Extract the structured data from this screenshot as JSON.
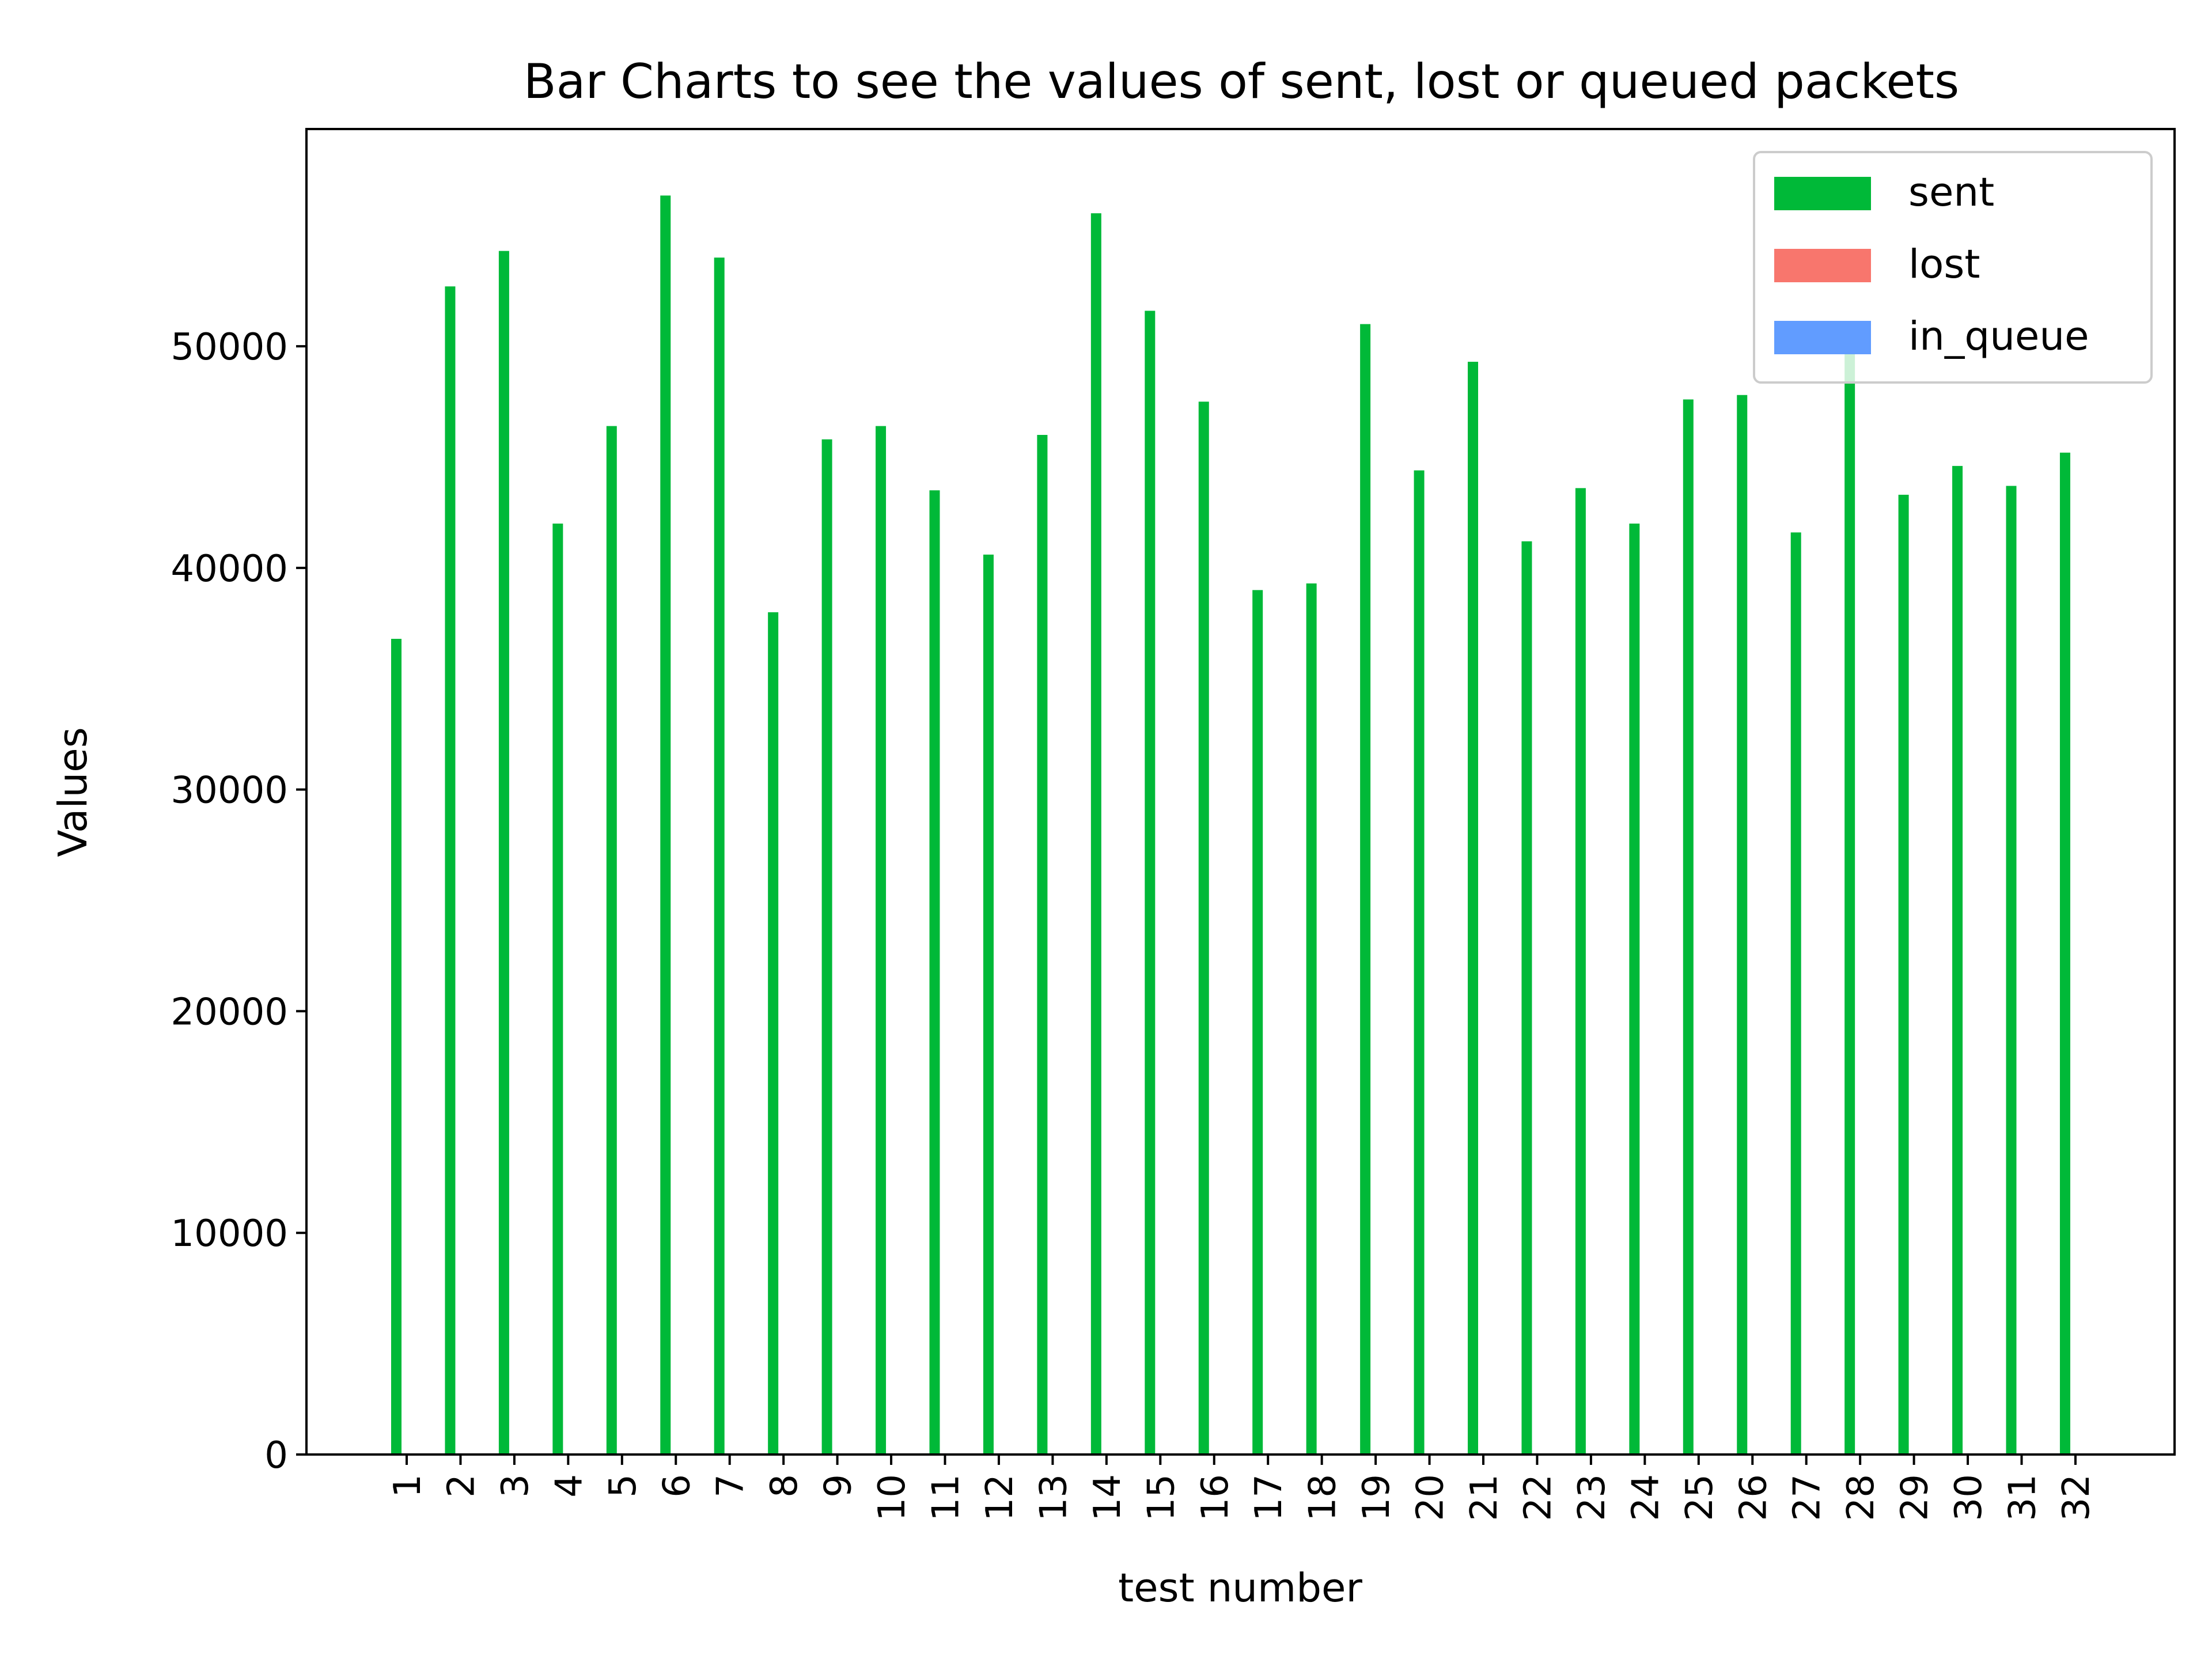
{
  "chart_data": {
    "type": "bar",
    "title": "Bar Charts to see the values of sent, lost or queued packets",
    "xlabel": "test number",
    "ylabel": "Values",
    "ylim": [
      0,
      59800
    ],
    "yticks": [
      0,
      10000,
      20000,
      30000,
      40000,
      50000
    ],
    "grid": false,
    "legend_position": "top-right",
    "categories": [
      "1",
      "2",
      "3",
      "4",
      "5",
      "6",
      "7",
      "8",
      "9",
      "10",
      "11",
      "12",
      "13",
      "14",
      "15",
      "16",
      "17",
      "18",
      "19",
      "20",
      "21",
      "22",
      "23",
      "24",
      "25",
      "26",
      "27",
      "28",
      "29",
      "30",
      "31",
      "32"
    ],
    "series": [
      {
        "name": "sent",
        "color": "#00b938",
        "values": [
          36800,
          52700,
          54300,
          42000,
          46400,
          56800,
          54000,
          38000,
          45800,
          46400,
          43500,
          40600,
          46000,
          56000,
          51600,
          47500,
          39000,
          39300,
          51000,
          44400,
          49300,
          41200,
          43600,
          42000,
          47600,
          47800,
          41600,
          50800,
          43300,
          44600,
          43700,
          45200
        ]
      },
      {
        "name": "lost",
        "color": "#f8766d",
        "values": [
          0,
          0,
          0,
          0,
          0,
          0,
          0,
          0,
          0,
          0,
          0,
          0,
          0,
          0,
          0,
          0,
          0,
          0,
          0,
          0,
          0,
          0,
          0,
          0,
          0,
          0,
          0,
          0,
          0,
          0,
          0,
          0
        ]
      },
      {
        "name": "in_queue",
        "color": "#619cff",
        "values": [
          0,
          0,
          0,
          0,
          0,
          0,
          0,
          0,
          0,
          0,
          0,
          0,
          0,
          0,
          0,
          0,
          0,
          0,
          0,
          0,
          0,
          0,
          0,
          0,
          0,
          0,
          0,
          0,
          0,
          0,
          0,
          0
        ]
      }
    ]
  }
}
